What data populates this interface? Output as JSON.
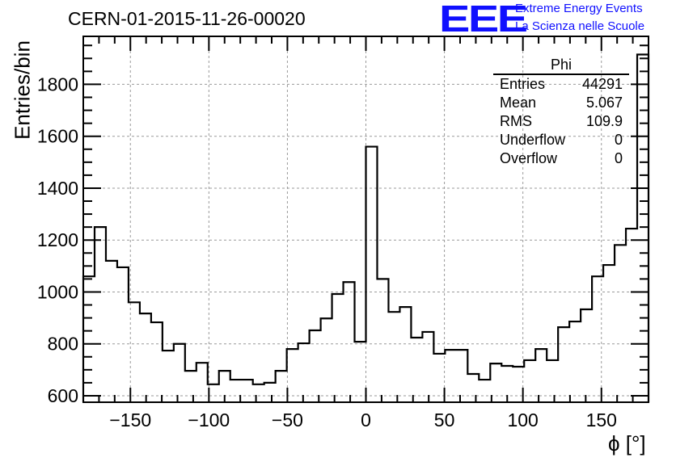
{
  "chart_data": {
    "type": "bar",
    "title": "CERN-01-2015-11-26-00020",
    "xlabel": "ϕ [°]",
    "ylabel": "Entries/bin",
    "xlim": [
      -180,
      180
    ],
    "ylim": [
      575,
      1985
    ],
    "grid": true,
    "bin_width": 7.2,
    "x_ticks": [
      -150,
      -100,
      -50,
      0,
      50,
      100,
      150
    ],
    "x_tick_labels": [
      "−150",
      "−100",
      "−50",
      "0",
      "50",
      "100",
      "150"
    ],
    "y_ticks": [
      600,
      800,
      1000,
      1200,
      1400,
      1600,
      1800
    ],
    "y_tick_labels": [
      "600",
      "800",
      "1000",
      "1200",
      "1400",
      "1600",
      "1800"
    ],
    "values": [
      1060,
      1250,
      1120,
      1095,
      960,
      917,
      883,
      774,
      800,
      696,
      727,
      644,
      696,
      662,
      662,
      644,
      650,
      696,
      780,
      802,
      852,
      898,
      992,
      1038,
      808,
      1560,
      1050,
      923,
      942,
      824,
      846,
      762,
      777,
      777,
      684,
      662,
      724,
      715,
      712,
      737,
      780,
      737,
      864,
      886,
      933,
      1060,
      1104,
      1181,
      1244,
      1915
    ],
    "stats": {
      "name": "Phi",
      "rows": [
        {
          "label": "Entries",
          "value": "44291"
        },
        {
          "label": "Mean",
          "value": "5.067"
        },
        {
          "label": "RMS",
          "value": "109.9"
        },
        {
          "label": "Underflow",
          "value": "0"
        },
        {
          "label": "Overflow",
          "value": "0"
        }
      ]
    }
  },
  "logo": {
    "text": "EEE",
    "line1": "Extreme Energy Events",
    "line2": "La Scienza nelle Scuole",
    "color": "#1010ff"
  }
}
